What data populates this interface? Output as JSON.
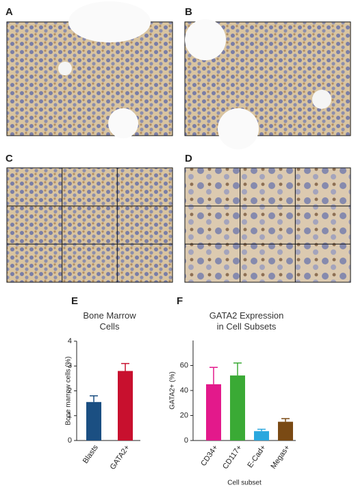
{
  "panel_labels": [
    "A",
    "B",
    "C",
    "D"
  ],
  "chart_data": [
    {
      "type": "bar",
      "panel_label": "E",
      "title": "Bone Marrow\nCells",
      "ylabel": "Bone marrow cells (%)",
      "categories": [
        "Blasts",
        "GATA2+"
      ],
      "values": [
        1.55,
        2.8
      ],
      "errors": [
        0.25,
        0.3
      ],
      "colors": [
        "#1b4f82",
        "#c8102e"
      ],
      "ylim": [
        0,
        4
      ],
      "yticks": [
        0,
        1,
        2,
        3,
        4
      ]
    },
    {
      "type": "bar",
      "panel_label": "F",
      "title": "GATA2 Expression\nin Cell Subsets",
      "ylabel": "GATA2+ (%)",
      "xlabel": "Cell subset",
      "categories": [
        "CD34+",
        "CD117+",
        "E-Cad+",
        "Megas+"
      ],
      "values": [
        45,
        52,
        7.5,
        15
      ],
      "errors": [
        13.5,
        10,
        1.5,
        2.5
      ],
      "colors": [
        "#e3198b",
        "#3aaa35",
        "#2aa7de",
        "#7a4a14"
      ],
      "ylim": [
        0,
        80
      ],
      "yticks": [
        0,
        20,
        40,
        60
      ]
    }
  ]
}
